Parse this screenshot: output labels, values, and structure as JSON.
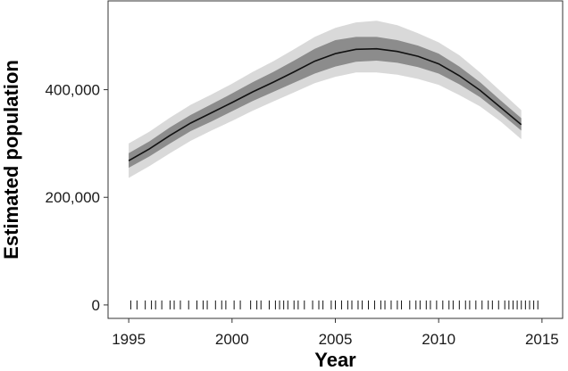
{
  "chart_data": {
    "type": "area",
    "title": "",
    "xlabel": "Year",
    "ylabel": "Estimated population",
    "xlim": [
      1994,
      2016
    ],
    "ylim": [
      -25000,
      565000
    ],
    "xticks": [
      1995,
      2000,
      2005,
      2010,
      2015
    ],
    "xtick_labels": [
      "1995",
      "2000",
      "2005",
      "2010",
      "2015"
    ],
    "yticks": [
      0,
      200000,
      400000
    ],
    "ytick_labels": [
      "0",
      "200,000",
      "400,000"
    ],
    "grid": false,
    "legend": "none",
    "x": [
      1995,
      1996,
      1997,
      1998,
      1999,
      2000,
      2001,
      2002,
      2003,
      2004,
      2005,
      2006,
      2007,
      2008,
      2009,
      2010,
      2011,
      2012,
      2013,
      2014
    ],
    "series": [
      {
        "role": "mean",
        "color": "#111111",
        "values": [
          268000,
          290000,
          315000,
          338000,
          357000,
          376000,
          396000,
          414000,
          433000,
          453000,
          467000,
          475000,
          476000,
          471000,
          462000,
          448000,
          426000,
          399000,
          367000,
          335000
        ]
      },
      {
        "role": "inner-band",
        "color": "#8c8c8c",
        "lower": [
          255000,
          276000,
          300000,
          323000,
          341000,
          360000,
          379000,
          396000,
          413000,
          430000,
          443000,
          452000,
          454000,
          450000,
          442000,
          430000,
          410000,
          386000,
          356000,
          324000
        ],
        "upper": [
          282000,
          304000,
          330000,
          353000,
          373000,
          393000,
          414000,
          433000,
          454000,
          476000,
          492000,
          498000,
          498000,
          492000,
          482000,
          467000,
          443000,
          414000,
          380000,
          347000
        ]
      },
      {
        "role": "outer-band",
        "color": "#d9d9d9",
        "lower": [
          236000,
          258000,
          282000,
          305000,
          324000,
          342000,
          361000,
          378000,
          395000,
          412000,
          424000,
          432000,
          432000,
          428000,
          420000,
          409000,
          390000,
          369000,
          341000,
          308000
        ],
        "upper": [
          300000,
          322000,
          348000,
          372000,
          391000,
          411000,
          433000,
          453000,
          475000,
          498000,
          515000,
          525000,
          528000,
          520000,
          505000,
          488000,
          464000,
          432000,
          397000,
          362000
        ]
      }
    ],
    "rug": {
      "color": "#111111",
      "x": [
        1995.1,
        1995.4,
        1995.8,
        1996.1,
        1996.3,
        1996.6,
        1997.0,
        1997.2,
        1997.5,
        1997.9,
        1998.3,
        1998.6,
        1998.8,
        1999.2,
        1999.5,
        1999.7,
        2000.1,
        2000.4,
        2000.9,
        2001.2,
        2001.4,
        2001.8,
        2002.1,
        2002.3,
        2002.5,
        2002.7,
        2003.0,
        2003.2,
        2003.5,
        2003.9,
        2004.2,
        2004.4,
        2004.8,
        2005.0,
        2005.3,
        2005.6,
        2005.8,
        2006.1,
        2006.3,
        2006.6,
        2006.9,
        2007.2,
        2007.4,
        2007.7,
        2008.0,
        2008.2,
        2008.6,
        2008.9,
        2009.1,
        2009.4,
        2009.6,
        2009.9,
        2010.2,
        2010.5,
        2010.7,
        2011.0,
        2011.3,
        2011.5,
        2011.8,
        2012.1,
        2012.4,
        2012.6,
        2012.9,
        2013.2,
        2013.4,
        2013.6,
        2013.8,
        2014.0,
        2014.2,
        2014.4,
        2014.6,
        2014.8
      ]
    }
  }
}
